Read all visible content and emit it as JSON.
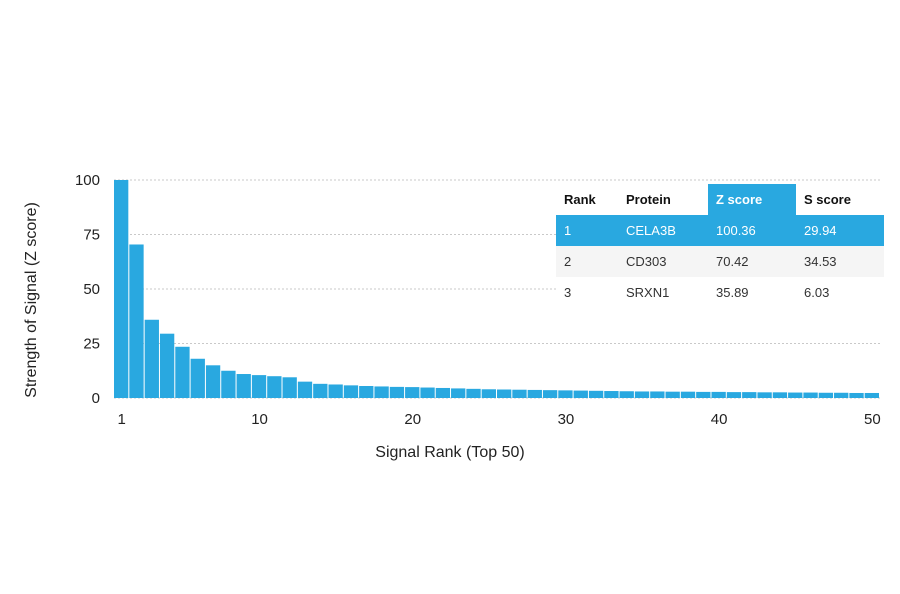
{
  "chart_data": {
    "type": "bar",
    "xlabel": "Signal Rank (Top 50)",
    "ylabel": "Strength of Signal (Z score)",
    "ylim": [
      0,
      100
    ],
    "xlim": [
      1,
      50
    ],
    "yticks": [
      0,
      25,
      50,
      75,
      100
    ],
    "xticks": [
      1,
      10,
      20,
      30,
      40,
      50
    ],
    "grid": "horizontal-dotted",
    "bar_color": "#29a8e0",
    "highlight_color": "#29a8e0",
    "ranks": [
      1,
      2,
      3,
      4,
      5,
      6,
      7,
      8,
      9,
      10,
      11,
      12,
      13,
      14,
      15,
      16,
      17,
      18,
      19,
      20,
      21,
      22,
      23,
      24,
      25,
      26,
      27,
      28,
      29,
      30,
      31,
      32,
      33,
      34,
      35,
      36,
      37,
      38,
      39,
      40,
      41,
      42,
      43,
      44,
      45,
      46,
      47,
      48,
      49,
      50
    ],
    "values": [
      100.36,
      70.42,
      35.89,
      29.5,
      23.5,
      18,
      15,
      12.5,
      11,
      10.5,
      10,
      9.5,
      7.5,
      6.5,
      6.2,
      5.8,
      5.5,
      5.3,
      5.1,
      5,
      4.8,
      4.6,
      4.4,
      4.2,
      4,
      3.9,
      3.8,
      3.7,
      3.6,
      3.5,
      3.4,
      3.3,
      3.2,
      3.1,
      3,
      3,
      2.9,
      2.9,
      2.8,
      2.8,
      2.7,
      2.7,
      2.6,
      2.6,
      2.5,
      2.5,
      2.4,
      2.4,
      2.3,
      2.3
    ],
    "table": {
      "headers": [
        "Rank",
        "Protein",
        "Z score",
        "S score"
      ],
      "rows": [
        [
          "1",
          "CELA3B",
          "100.36",
          "29.94"
        ],
        [
          "2",
          "CD303",
          "70.42",
          "34.53"
        ],
        [
          "3",
          "SRXN1",
          "35.89",
          "6.03"
        ]
      ],
      "highlight_row": 0,
      "highlight_column": 2
    }
  }
}
